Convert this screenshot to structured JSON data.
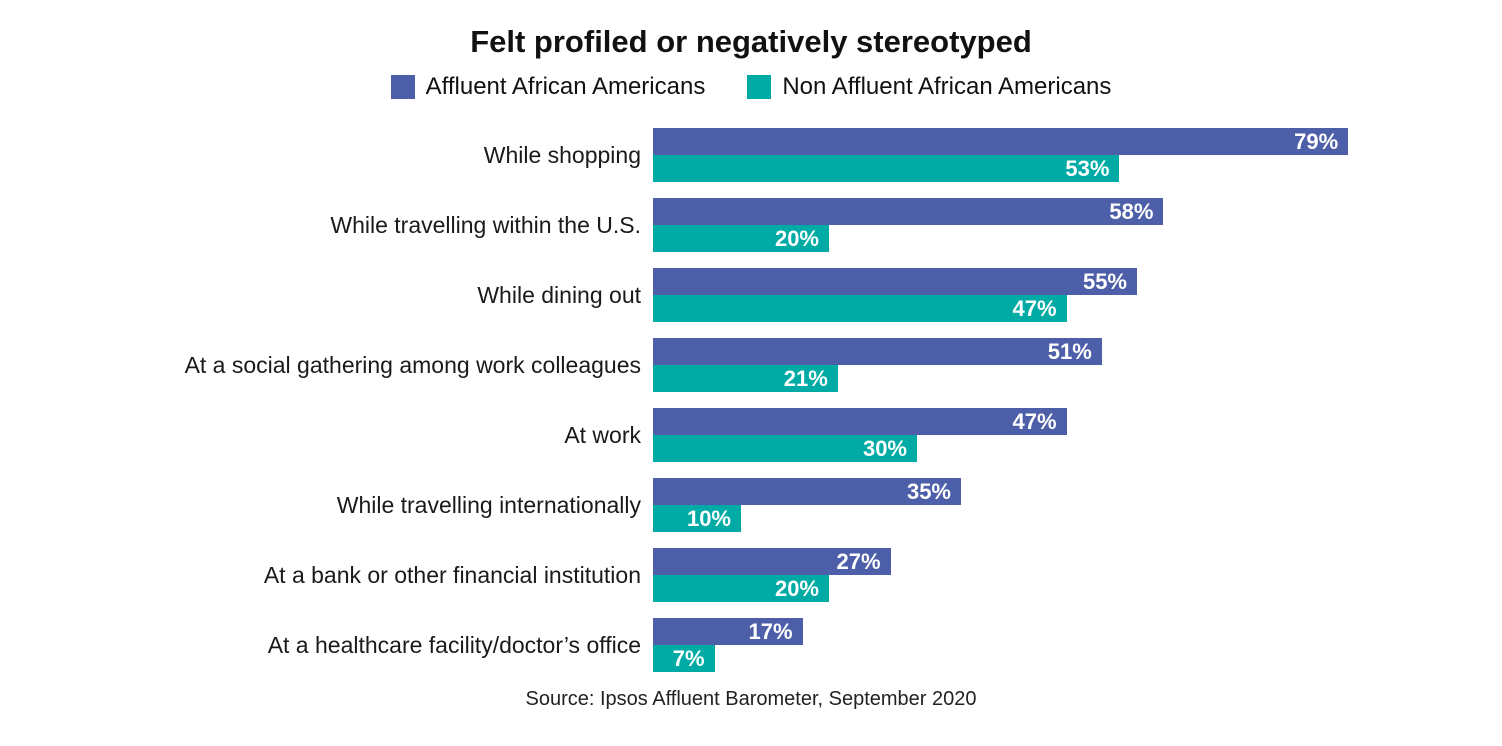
{
  "title": "Felt profiled or negatively stereotyped",
  "legend": {
    "affluent": {
      "label": "Affluent African Americans",
      "color": "#4D5FA8"
    },
    "non_affluent": {
      "label": "Non Affluent African Americans",
      "color": "#00ABA5"
    }
  },
  "source": "Source: Ipsos Affluent Barometer, September 2020",
  "chart_data": {
    "type": "bar",
    "orientation": "horizontal",
    "title": "Felt profiled or negatively stereotyped",
    "categories": [
      "While shopping",
      "While travelling within the U.S.",
      "While dining out",
      "At a social gathering among work colleagues",
      "At work",
      "While travelling internationally",
      "At a bank or other financial institution",
      "At a healthcare facility/doctor’s office"
    ],
    "series": [
      {
        "name": "Affluent African Americans",
        "color": "#4D5FA8",
        "values": [
          79,
          58,
          55,
          51,
          47,
          35,
          27,
          17
        ]
      },
      {
        "name": "Non Affluent African Americans",
        "color": "#00ABA5",
        "values": [
          53,
          20,
          47,
          21,
          30,
          10,
          20,
          7
        ]
      }
    ],
    "value_suffix": "%",
    "value_labels": "inside-end, white, bold",
    "xlim": [
      0,
      90
    ],
    "grid": false,
    "legend_position": "top-center",
    "xlabel": "",
    "ylabel": ""
  }
}
